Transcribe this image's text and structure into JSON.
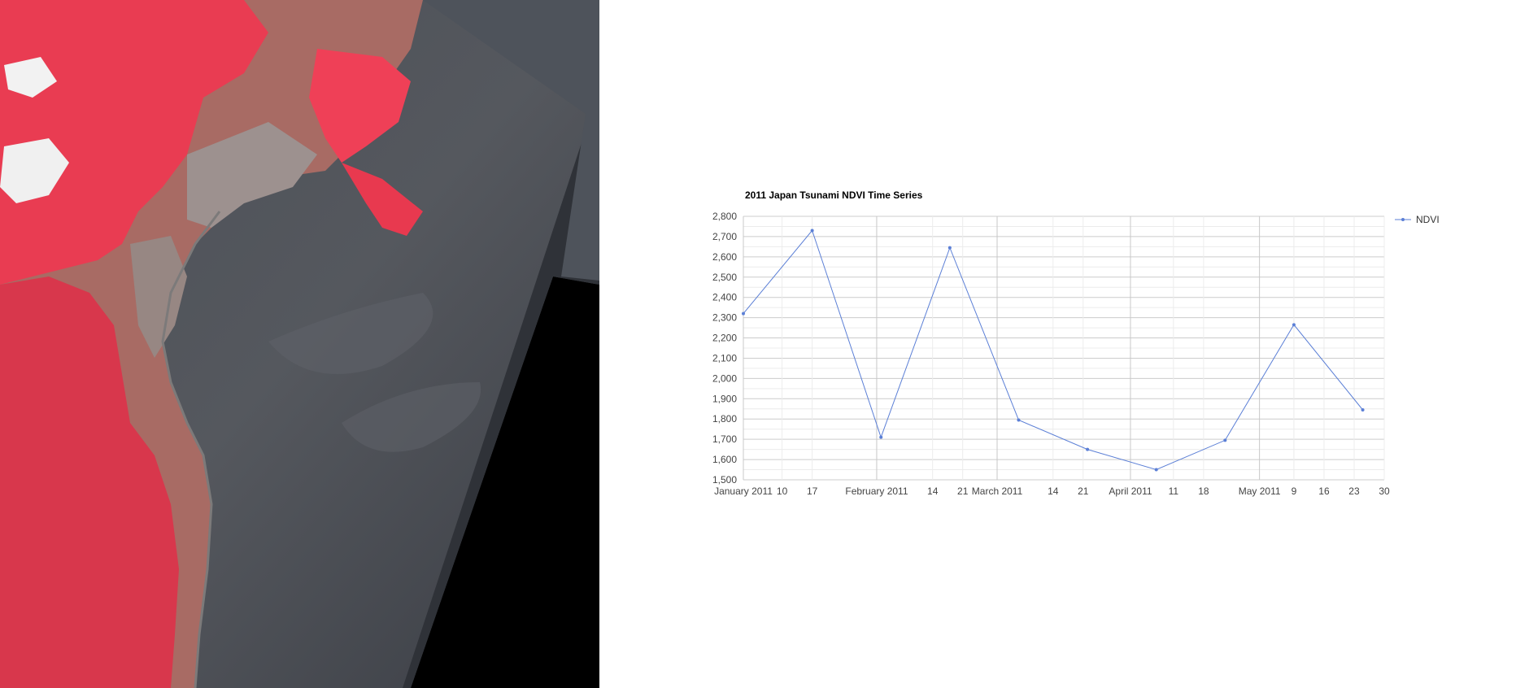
{
  "map": {
    "description_icon": "satellite-imagery",
    "colors": {
      "vegetation": "#e8394f",
      "land": "#a76a63",
      "urban": "#9b8f8e",
      "ocean": "#3f4249",
      "nodata": "#000000",
      "snow": "#f4f4f4"
    }
  },
  "chart_data": {
    "type": "line",
    "title": "2011 Japan Tsunami NDVI Time Series",
    "xlabel": "",
    "ylabel": "",
    "ylim": [
      1500,
      2800
    ],
    "y_ticks": [
      "1,500",
      "1,600",
      "1,700",
      "1,800",
      "1,900",
      "2,000",
      "2,100",
      "2,200",
      "2,300",
      "2,400",
      "2,500",
      "2,600",
      "2,700",
      "2,800"
    ],
    "y_tick_values": [
      1500,
      1600,
      1700,
      1800,
      1900,
      2000,
      2100,
      2200,
      2300,
      2400,
      2500,
      2600,
      2700,
      2800
    ],
    "x_range": [
      "2011-01-01",
      "2011-05-30"
    ],
    "x_ticks": [
      {
        "date": "2011-01-01",
        "label": "January 2011",
        "major": true
      },
      {
        "date": "2011-01-10",
        "label": "10",
        "major": false
      },
      {
        "date": "2011-01-17",
        "label": "17",
        "major": false
      },
      {
        "date": "2011-02-01",
        "label": "February 2011",
        "major": true
      },
      {
        "date": "2011-02-14",
        "label": "14",
        "major": false
      },
      {
        "date": "2011-02-21",
        "label": "21",
        "major": false
      },
      {
        "date": "2011-03-01",
        "label": "March 2011",
        "major": true
      },
      {
        "date": "2011-03-14",
        "label": "14",
        "major": false
      },
      {
        "date": "2011-03-21",
        "label": "21",
        "major": false
      },
      {
        "date": "2011-04-01",
        "label": "April 2011",
        "major": true
      },
      {
        "date": "2011-04-11",
        "label": "11",
        "major": false
      },
      {
        "date": "2011-04-18",
        "label": "18",
        "major": false
      },
      {
        "date": "2011-05-01",
        "label": "May 2011",
        "major": true
      },
      {
        "date": "2011-05-09",
        "label": "9",
        "major": false
      },
      {
        "date": "2011-05-16",
        "label": "16",
        "major": false
      },
      {
        "date": "2011-05-23",
        "label": "23",
        "major": false
      },
      {
        "date": "2011-05-30",
        "label": "30",
        "major": false
      }
    ],
    "series": [
      {
        "name": "NDVI",
        "color": "#5b7fd6",
        "points": [
          {
            "x": "2011-01-01",
            "y": 2320
          },
          {
            "x": "2011-01-17",
            "y": 2730
          },
          {
            "x": "2011-02-02",
            "y": 1710
          },
          {
            "x": "2011-02-18",
            "y": 2645
          },
          {
            "x": "2011-03-06",
            "y": 1795
          },
          {
            "x": "2011-03-22",
            "y": 1650
          },
          {
            "x": "2011-04-07",
            "y": 1550
          },
          {
            "x": "2011-04-23",
            "y": 1695
          },
          {
            "x": "2011-05-09",
            "y": 2265
          },
          {
            "x": "2011-05-25",
            "y": 1845
          }
        ]
      }
    ],
    "legend_position": "right",
    "grid": true
  }
}
